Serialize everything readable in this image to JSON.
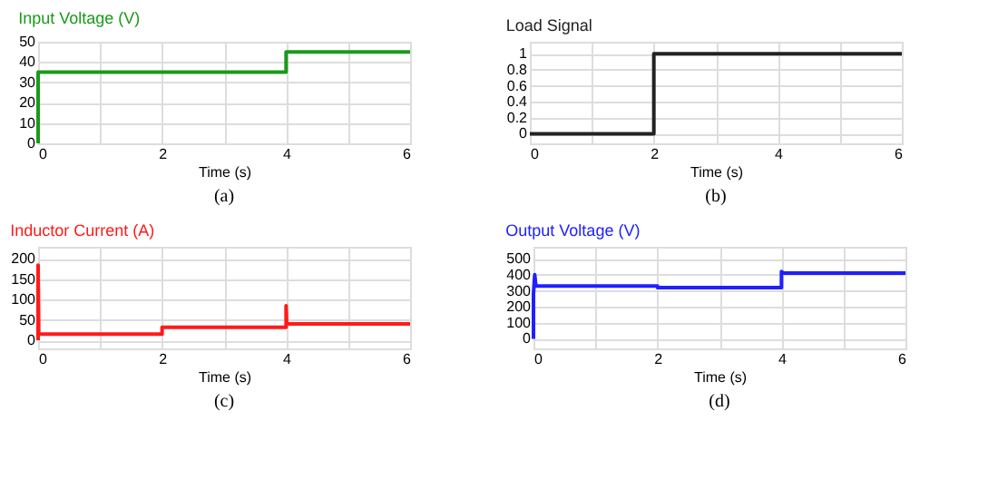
{
  "chart_data": [
    {
      "type": "line",
      "title": "Input Voltage (V)",
      "xlabel": "Time (s)",
      "annotations": [
        "(a)"
      ],
      "grid": true,
      "xlim": [
        0,
        6
      ],
      "ylim": [
        0,
        50
      ],
      "xticks": [
        0,
        {
          "value": 1,
          "label": null
        },
        2,
        {
          "value": 3,
          "label": null
        },
        4,
        {
          "value": 5,
          "label": null
        },
        6
      ],
      "yticks": [
        0,
        10,
        20,
        30,
        40,
        50
      ],
      "series": [
        {
          "color": "#1a9a1a",
          "x": [
            0,
            0,
            4,
            4,
            6
          ],
          "values": [
            0,
            35,
            35,
            45,
            45
          ]
        }
      ]
    },
    {
      "type": "line",
      "title": "Load Signal",
      "xlabel": "Time (s)",
      "annotations": [
        "(b)"
      ],
      "grid": true,
      "xlim": [
        0,
        6
      ],
      "ylim": [
        -0.12,
        1.15
      ],
      "xticks": [
        0,
        {
          "value": 1,
          "label": null
        },
        2,
        {
          "value": 3,
          "label": null
        },
        4,
        {
          "value": 5,
          "label": null
        },
        6
      ],
      "yticks": [
        0,
        0.2,
        0.4,
        0.6,
        0.8,
        1
      ],
      "series": [
        {
          "color": "#222222",
          "x": [
            0,
            2,
            2,
            6
          ],
          "values": [
            0,
            0,
            1,
            1
          ]
        }
      ]
    },
    {
      "type": "line",
      "title": "Inductor Current (A)",
      "xlabel": "Time (s)",
      "annotations": [
        "(c)"
      ],
      "grid": true,
      "xlim": [
        0,
        6
      ],
      "ylim": [
        -20,
        230
      ],
      "xticks": [
        0,
        {
          "value": 1,
          "label": null
        },
        2,
        {
          "value": 3,
          "label": null
        },
        4,
        {
          "value": 5,
          "label": null
        },
        6
      ],
      "yticks": [
        0,
        50,
        100,
        150,
        200
      ],
      "series": [
        {
          "color": "#ff1a1a",
          "x": [
            0,
            0,
            0.01,
            0.02,
            2,
            2,
            4,
            4,
            4.01,
            6
          ],
          "values": [
            0,
            185,
            20,
            15,
            15,
            32,
            32,
            85,
            40,
            40
          ]
        }
      ]
    },
    {
      "type": "line",
      "title": "Output Voltage (V)",
      "xlabel": "Time (s)",
      "annotations": [
        "(d)"
      ],
      "grid": true,
      "xlim": [
        0,
        6
      ],
      "ylim": [
        -60,
        575
      ],
      "xticks": [
        0,
        {
          "value": 1,
          "label": null
        },
        2,
        {
          "value": 3,
          "label": null
        },
        4,
        {
          "value": 5,
          "label": null
        },
        6
      ],
      "yticks": [
        0,
        100,
        200,
        300,
        400,
        500
      ],
      "series": [
        {
          "color": "#2020ff",
          "x": [
            0,
            0,
            0.02,
            0.04,
            2,
            2,
            4,
            4,
            4.03,
            6
          ],
          "values": [
            0,
            280,
            400,
            330,
            330,
            320,
            320,
            420,
            410,
            410
          ]
        }
      ]
    }
  ]
}
